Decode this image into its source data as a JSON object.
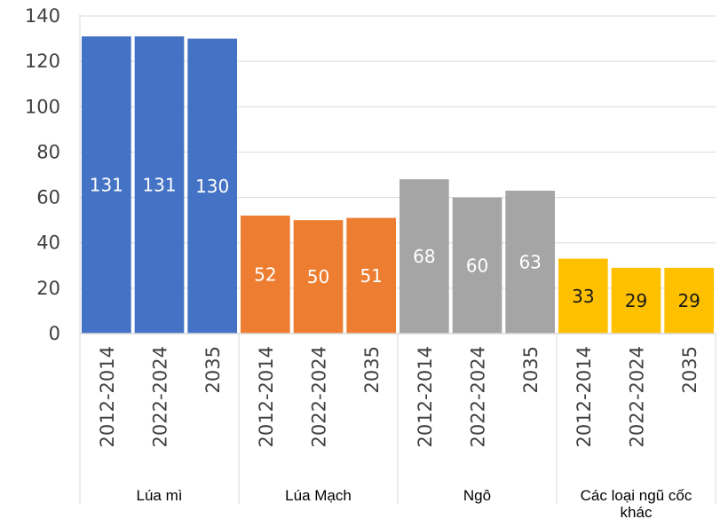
{
  "chart_data": {
    "type": "bar",
    "ylim": [
      0,
      140
    ],
    "yticks": [
      "0",
      "20",
      "40",
      "60",
      "80",
      "100",
      "120",
      "140"
    ],
    "grid": true,
    "groups": [
      {
        "name": "Lúa mì",
        "color": "#4472C4",
        "label_color": "#ffffff",
        "bars": [
          {
            "category": "2012-2014",
            "value": 131,
            "label": "131"
          },
          {
            "category": "2022-2024",
            "value": 131,
            "label": "131"
          },
          {
            "category": "2035",
            "value": 130,
            "label": "130"
          }
        ]
      },
      {
        "name": "Lúa Mạch",
        "color": "#ED7D31",
        "label_color": "#ffffff",
        "bars": [
          {
            "category": "2012-2014",
            "value": 52,
            "label": "52"
          },
          {
            "category": "2022-2024",
            "value": 50,
            "label": "50"
          },
          {
            "category": "2035",
            "value": 51,
            "label": "51"
          }
        ]
      },
      {
        "name": "Ngô",
        "color": "#A5A5A5",
        "label_color": "#ffffff",
        "bars": [
          {
            "category": "2012-2014",
            "value": 68,
            "label": "68"
          },
          {
            "category": "2022-2024",
            "value": 60,
            "label": "60"
          },
          {
            "category": "2035",
            "value": 63,
            "label": "63"
          }
        ]
      },
      {
        "name": "Các loại ngũ cốc khác",
        "name_lines": [
          "Các loại ngũ cốc",
          "khác"
        ],
        "color": "#FFC000",
        "label_color": "#1a1a1a",
        "bars": [
          {
            "category": "2012-2014",
            "value": 33,
            "label": "33"
          },
          {
            "category": "2022-2024",
            "value": 29,
            "label": "29"
          },
          {
            "category": "2035",
            "value": 29,
            "label": "29"
          }
        ]
      }
    ]
  }
}
